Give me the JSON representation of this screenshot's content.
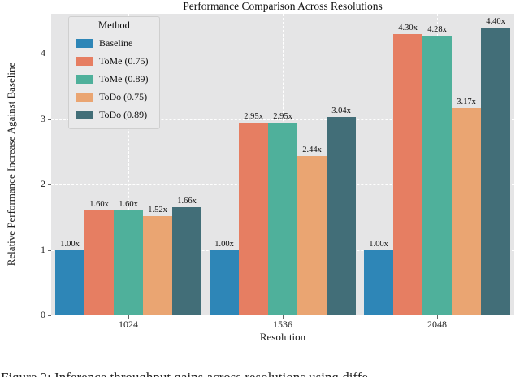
{
  "figure": {
    "title": "Performance Comparison Across Resolutions",
    "xlabel": "Resolution",
    "ylabel": "Relative Performance Increase Against Baseline",
    "caption": "Figure 2: Inference throughput gains across resolutions using diffe"
  },
  "legend": {
    "title": "Method"
  },
  "colors": {
    "plot_background": "#e5e5e6",
    "gridline": "#ffffff",
    "baseline_blue": "#2e86b7",
    "tome075_coral": "#e67e62",
    "tome089_green": "#4fb09b",
    "todo075_tan": "#eaa572",
    "todo089_slate": "#426e78"
  },
  "chart_data": {
    "type": "bar",
    "title": "Performance Comparison Across Resolutions",
    "xlabel": "Resolution",
    "ylabel": "Relative Performance Increase Against Baseline",
    "categories": [
      "1024",
      "1536",
      "2048"
    ],
    "series": [
      {
        "name": "Baseline",
        "color": "#2e86b7",
        "values": [
          1.0,
          1.0,
          1.0
        ],
        "labels": [
          "1.00x",
          "1.00x",
          "1.00x"
        ]
      },
      {
        "name": "ToMe (0.75)",
        "color": "#e67e62",
        "values": [
          1.6,
          2.95,
          4.3
        ],
        "labels": [
          "1.60x",
          "2.95x",
          "4.30x"
        ]
      },
      {
        "name": "ToMe (0.89)",
        "color": "#4fb09b",
        "values": [
          1.6,
          2.95,
          4.28
        ],
        "labels": [
          "1.60x",
          "2.95x",
          "4.28x"
        ]
      },
      {
        "name": "ToDo (0.75)",
        "color": "#eaa572",
        "values": [
          1.52,
          2.44,
          3.17
        ],
        "labels": [
          "1.52x",
          "2.44x",
          "3.17x"
        ]
      },
      {
        "name": "ToDo (0.89)",
        "color": "#426e78",
        "values": [
          1.66,
          3.04,
          4.4
        ],
        "labels": [
          "1.66x",
          "3.04x",
          "4.40x"
        ]
      }
    ],
    "yticks": [
      "0",
      "1",
      "2",
      "3",
      "4"
    ],
    "ylim": [
      0,
      4.6
    ],
    "grid": "dashed white, horizontal at integers and vertical at category centers",
    "legend_position": "upper-left",
    "legend_title": "Method"
  }
}
